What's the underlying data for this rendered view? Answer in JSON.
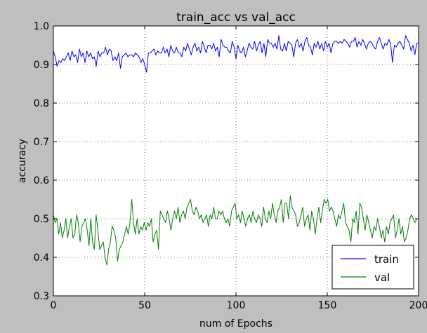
{
  "chart_data": {
    "type": "line",
    "title": "train_acc vs val_acc",
    "xlabel": "num of Epochs",
    "ylabel": "accuracy",
    "xlim": [
      0,
      200
    ],
    "ylim": [
      0.3,
      1.0
    ],
    "grid": true,
    "legend_position": "lower-right",
    "xticks": [
      "0",
      "50",
      "100",
      "150",
      "200"
    ],
    "yticks": [
      "0.3",
      "0.4",
      "0.5",
      "0.6",
      "0.7",
      "0.8",
      "0.9",
      "1.0"
    ],
    "series": [
      {
        "name": "train",
        "color": "#0000ff",
        "values": [
          0.935,
          0.92,
          0.895,
          0.91,
          0.905,
          0.915,
          0.91,
          0.92,
          0.93,
          0.91,
          0.935,
          0.92,
          0.925,
          0.905,
          0.94,
          0.92,
          0.93,
          0.905,
          0.935,
          0.92,
          0.93,
          0.915,
          0.92,
          0.895,
          0.935,
          0.92,
          0.93,
          0.93,
          0.945,
          0.925,
          0.94,
          0.935,
          0.91,
          0.92,
          0.91,
          0.93,
          0.89,
          0.92,
          0.925,
          0.93,
          0.92,
          0.925,
          0.925,
          0.92,
          0.93,
          0.925,
          0.92,
          0.905,
          0.915,
          0.9,
          0.88,
          0.93,
          0.93,
          0.935,
          0.94,
          0.925,
          0.935,
          0.93,
          0.93,
          0.945,
          0.93,
          0.94,
          0.92,
          0.95,
          0.935,
          0.93,
          0.945,
          0.93,
          0.93,
          0.92,
          0.945,
          0.935,
          0.955,
          0.94,
          0.925,
          0.945,
          0.955,
          0.935,
          0.945,
          0.93,
          0.96,
          0.945,
          0.93,
          0.95,
          0.95,
          0.94,
          0.955,
          0.935,
          0.945,
          0.92,
          0.965,
          0.95,
          0.945,
          0.945,
          0.935,
          0.93,
          0.96,
          0.945,
          0.915,
          0.95,
          0.935,
          0.93,
          0.945,
          0.92,
          0.935,
          0.955,
          0.945,
          0.94,
          0.96,
          0.935,
          0.95,
          0.96,
          0.93,
          0.955,
          0.92,
          0.965,
          0.955,
          0.955,
          0.945,
          0.955,
          0.94,
          0.975,
          0.94,
          0.935,
          0.955,
          0.935,
          0.96,
          0.955,
          0.95,
          0.92,
          0.955,
          0.965,
          0.945,
          0.955,
          0.935,
          0.96,
          0.97,
          0.95,
          0.945,
          0.925,
          0.955,
          0.945,
          0.96,
          0.94,
          0.955,
          0.935,
          0.96,
          0.945,
          0.955,
          0.93,
          0.955,
          0.96,
          0.96,
          0.955,
          0.96,
          0.955,
          0.965,
          0.96,
          0.955,
          0.945,
          0.96,
          0.96,
          0.97,
          0.945,
          0.96,
          0.95,
          0.965,
          0.955,
          0.94,
          0.955,
          0.96,
          0.955,
          0.945,
          0.94,
          0.96,
          0.97,
          0.955,
          0.94,
          0.955,
          0.95,
          0.965,
          0.955,
          0.905,
          0.95,
          0.945,
          0.955,
          0.96,
          0.95,
          0.94,
          0.975,
          0.965,
          0.955,
          0.935,
          0.95,
          0.925,
          0.955,
          0.955
        ]
      },
      {
        "name": "val",
        "color": "#008000",
        "values": [
          0.51,
          0.49,
          0.5,
          0.46,
          0.49,
          0.45,
          0.47,
          0.5,
          0.45,
          0.48,
          0.5,
          0.45,
          0.46,
          0.51,
          0.49,
          0.44,
          0.48,
          0.49,
          0.5,
          0.47,
          0.43,
          0.5,
          0.44,
          0.42,
          0.51,
          0.47,
          0.42,
          0.43,
          0.44,
          0.4,
          0.38,
          0.42,
          0.44,
          0.48,
          0.47,
          0.45,
          0.39,
          0.42,
          0.43,
          0.44,
          0.46,
          0.48,
          0.46,
          0.49,
          0.55,
          0.49,
          0.46,
          0.5,
          0.46,
          0.48,
          0.47,
          0.49,
          0.47,
          0.49,
          0.48,
          0.5,
          0.44,
          0.46,
          0.47,
          0.42,
          0.52,
          0.51,
          0.5,
          0.49,
          0.52,
          0.5,
          0.47,
          0.5,
          0.52,
          0.5,
          0.53,
          0.49,
          0.51,
          0.52,
          0.5,
          0.53,
          0.54,
          0.55,
          0.52,
          0.51,
          0.53,
          0.52,
          0.5,
          0.51,
          0.49,
          0.5,
          0.51,
          0.48,
          0.51,
          0.5,
          0.53,
          0.5,
          0.5,
          0.52,
          0.51,
          0.52,
          0.5,
          0.49,
          0.5,
          0.48,
          0.52,
          0.53,
          0.54,
          0.5,
          0.51,
          0.49,
          0.52,
          0.5,
          0.48,
          0.5,
          0.51,
          0.49,
          0.52,
          0.5,
          0.49,
          0.51,
          0.5,
          0.48,
          0.53,
          0.5,
          0.49,
          0.52,
          0.5,
          0.54,
          0.51,
          0.49,
          0.52,
          0.53,
          0.55,
          0.49,
          0.54,
          0.54,
          0.5,
          0.56,
          0.53,
          0.52,
          0.51,
          0.48,
          0.49,
          0.51,
          0.53,
          0.48,
          0.5,
          0.51,
          0.47,
          0.52,
          0.5,
          0.46,
          0.5,
          0.53,
          0.49,
          0.52,
          0.55,
          0.54,
          0.55,
          0.52,
          0.53,
          0.52,
          0.5,
          0.48,
          0.51,
          0.5,
          0.52,
          0.54,
          0.49,
          0.48,
          0.47,
          0.44,
          0.5,
          0.49,
          0.52,
          0.46,
          0.54,
          0.53,
          0.5,
          0.47,
          0.51,
          0.49,
          0.47,
          0.45,
          0.48,
          0.47,
          0.5,
          0.48,
          0.45,
          0.47,
          0.44,
          0.48,
          0.46,
          0.49,
          0.5,
          0.51,
          0.45,
          0.47,
          0.5,
          0.46,
          0.48,
          0.44,
          0.45,
          0.47,
          0.5,
          0.51,
          0.5,
          0.49,
          0.5,
          0.5
        ]
      }
    ]
  }
}
